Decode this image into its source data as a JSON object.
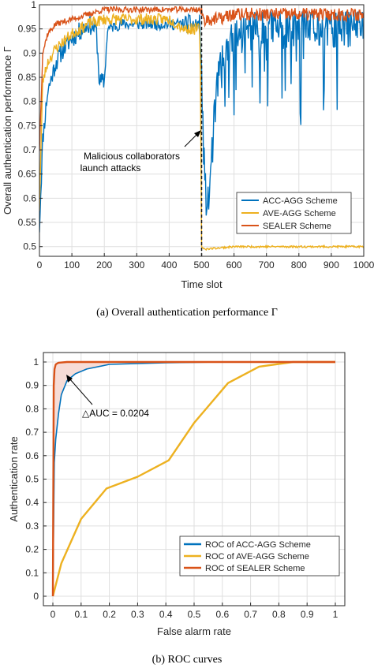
{
  "chart_data": [
    {
      "type": "line",
      "caption": "(a)  Overall authentication performance Γ",
      "xlabel": "Time slot",
      "ylabel": "Overall authentication performance Γ",
      "xlim": [
        0,
        1000
      ],
      "ylim": [
        0.48,
        1.0
      ],
      "xticks": [
        "0",
        "100",
        "200",
        "300",
        "400",
        "500",
        "600",
        "700",
        "800",
        "900",
        "1000"
      ],
      "yticks": [
        "0.5",
        "0.55",
        "0.6",
        "0.65",
        "0.7",
        "0.75",
        "0.8",
        "0.85",
        "0.9",
        "0.95",
        "1"
      ],
      "grid": true,
      "legend": "bottom-right",
      "annotation": {
        "lines": [
          "Malicious collaborators",
          "launch attacks"
        ],
        "at_x": 500
      },
      "series": [
        {
          "name": "ACC-AGG Scheme",
          "color": "#0072BD",
          "x": [
            0,
            10,
            25,
            50,
            75,
            100,
            150,
            175,
            185,
            200,
            210,
            250,
            300,
            350,
            400,
            450,
            495,
            505,
            510,
            520,
            535,
            550,
            600,
            650,
            700,
            800,
            900,
            1000
          ],
          "y": [
            0.54,
            0.72,
            0.82,
            0.88,
            0.91,
            0.93,
            0.96,
            0.95,
            0.84,
            0.84,
            0.95,
            0.96,
            0.96,
            0.96,
            0.96,
            0.96,
            0.96,
            0.73,
            0.62,
            0.58,
            0.72,
            0.85,
            0.93,
            0.95,
            0.95,
            0.95,
            0.95,
            0.96
          ]
        },
        {
          "name": "AVE-AGG Scheme",
          "color": "#EDB120",
          "x": [
            0,
            10,
            25,
            50,
            100,
            150,
            200,
            250,
            300,
            350,
            400,
            450,
            495,
            500,
            510,
            600,
            700,
            800,
            900,
            1000
          ],
          "y": [
            0.58,
            0.84,
            0.88,
            0.91,
            0.94,
            0.96,
            0.97,
            0.97,
            0.97,
            0.97,
            0.97,
            0.95,
            0.95,
            0.5,
            0.495,
            0.5,
            0.5,
            0.5,
            0.5,
            0.5
          ]
        },
        {
          "name": "SEALER Scheme",
          "color": "#D95319",
          "x": [
            0,
            10,
            25,
            50,
            100,
            150,
            200,
            300,
            400,
            495,
            505,
            550,
            600,
            700,
            800,
            900,
            1000
          ],
          "y": [
            0.7,
            0.9,
            0.94,
            0.96,
            0.97,
            0.98,
            0.99,
            0.99,
            0.99,
            0.99,
            0.97,
            0.97,
            0.98,
            0.98,
            0.98,
            0.98,
            0.98
          ]
        }
      ]
    },
    {
      "type": "line",
      "caption": "(b)  ROC curves",
      "xlabel": "False alarm rate",
      "ylabel": "Authentication rate",
      "xlim": [
        0,
        1
      ],
      "ylim": [
        0,
        1
      ],
      "xticks": [
        "0",
        "0.1",
        "0.2",
        "0.3",
        "0.4",
        "0.5",
        "0.6",
        "0.7",
        "0.8",
        "0.9",
        "1"
      ],
      "yticks": [
        "0",
        "0.1",
        "0.2",
        "0.3",
        "0.4",
        "0.5",
        "0.6",
        "0.7",
        "0.8",
        "0.9",
        "1"
      ],
      "grid": true,
      "legend": "bottom-right",
      "annotation": {
        "text": "△AUC = 0.0204",
        "at": [
          0.02,
          0.99
        ]
      },
      "series": [
        {
          "name": "ROC of ACC-AGG Scheme",
          "color": "#0072BD",
          "x": [
            0,
            0.005,
            0.01,
            0.02,
            0.03,
            0.05,
            0.08,
            0.12,
            0.2,
            0.4,
            0.6,
            0.8,
            1.0
          ],
          "y": [
            0,
            0.57,
            0.67,
            0.78,
            0.86,
            0.92,
            0.95,
            0.97,
            0.99,
            0.997,
            1.0,
            1.0,
            1.0
          ]
        },
        {
          "name": "ROC of AVE-AGG Scheme",
          "color": "#EDB120",
          "x": [
            0,
            0.03,
            0.1,
            0.19,
            0.3,
            0.41,
            0.5,
            0.62,
            0.73,
            0.85,
            1.0
          ],
          "y": [
            0,
            0.14,
            0.33,
            0.46,
            0.51,
            0.58,
            0.74,
            0.91,
            0.98,
            1.0,
            1.0
          ]
        },
        {
          "name": "ROC of SEALER Scheme",
          "color": "#D95319",
          "x": [
            0,
            0.003,
            0.006,
            0.01,
            0.02,
            0.05,
            0.2,
            1.0
          ],
          "y": [
            0,
            0.9,
            0.97,
            0.99,
            0.997,
            1.0,
            1.0,
            1.0
          ]
        }
      ]
    }
  ]
}
